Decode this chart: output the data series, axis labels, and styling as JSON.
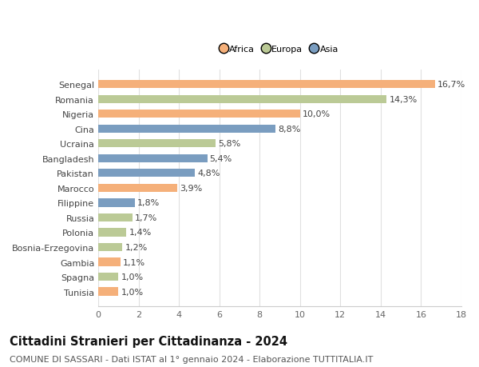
{
  "categories": [
    "Senegal",
    "Romania",
    "Nigeria",
    "Cina",
    "Ucraina",
    "Bangladesh",
    "Pakistan",
    "Marocco",
    "Filippine",
    "Russia",
    "Polonia",
    "Bosnia-Erzegovina",
    "Gambia",
    "Spagna",
    "Tunisia"
  ],
  "values": [
    16.7,
    14.3,
    10.0,
    8.8,
    5.8,
    5.4,
    4.8,
    3.9,
    1.8,
    1.7,
    1.4,
    1.2,
    1.1,
    1.0,
    1.0
  ],
  "labels": [
    "16,7%",
    "14,3%",
    "10,0%",
    "8,8%",
    "5,8%",
    "5,4%",
    "4,8%",
    "3,9%",
    "1,8%",
    "1,7%",
    "1,4%",
    "1,2%",
    "1,1%",
    "1,0%",
    "1,0%"
  ],
  "continent": [
    "Africa",
    "Europa",
    "Africa",
    "Asia",
    "Europa",
    "Asia",
    "Asia",
    "Africa",
    "Asia",
    "Europa",
    "Europa",
    "Europa",
    "Africa",
    "Europa",
    "Africa"
  ],
  "colors": {
    "Africa": "#F5B07A",
    "Europa": "#BBCA96",
    "Asia": "#7A9DC0"
  },
  "title": "Cittadini Stranieri per Cittadinanza - 2024",
  "subtitle": "COMUNE DI SASSARI - Dati ISTAT al 1° gennaio 2024 - Elaborazione TUTTITALIA.IT",
  "xlim": [
    0,
    18
  ],
  "xticks": [
    0,
    2,
    4,
    6,
    8,
    10,
    12,
    14,
    16,
    18
  ],
  "background_color": "#ffffff",
  "grid_color": "#e0e0e0",
  "bar_height": 0.55,
  "label_fontsize": 8,
  "tick_fontsize": 8,
  "title_fontsize": 10.5,
  "subtitle_fontsize": 8
}
